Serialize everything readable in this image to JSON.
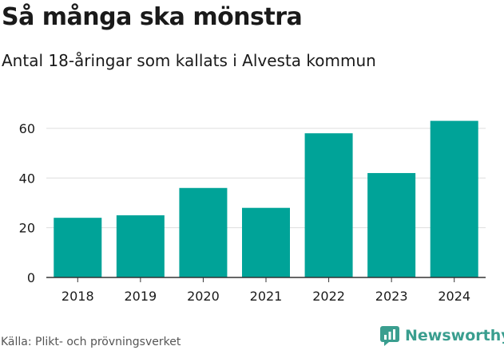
{
  "title": "Så många ska mönstra",
  "subtitle": "Antal 18-åringar som kallats i Alvesta kommun",
  "source": "Källa: Plikt- och prövningsverket",
  "brand": {
    "name": "Newsworthy"
  },
  "colors": {
    "bar": "#00a398",
    "grid": "#dddddd",
    "axis": "#333333",
    "text": "#1a1a1a",
    "brand": "#3a9e8f"
  },
  "chart_data": {
    "type": "bar",
    "title": "Så många ska mönstra",
    "subtitle": "Antal 18-åringar som kallats i Alvesta kommun",
    "categories": [
      "2018",
      "2019",
      "2020",
      "2021",
      "2022",
      "2023",
      "2024"
    ],
    "values": [
      24,
      25,
      36,
      28,
      58,
      42,
      63
    ],
    "xlabel": "",
    "ylabel": "",
    "ylim": [
      0,
      68
    ],
    "yticks": [
      0,
      20,
      40,
      60
    ],
    "grid": true,
    "legend": "none"
  }
}
